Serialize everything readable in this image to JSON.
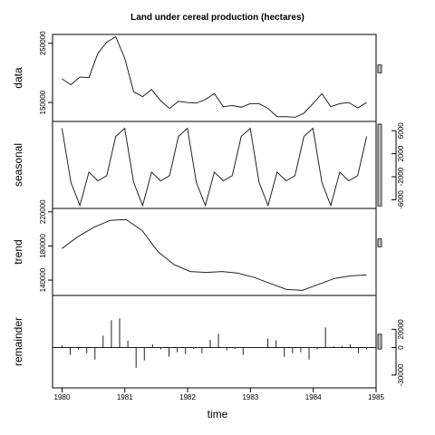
{
  "chart_data": {
    "type": "line",
    "title": "Land under cereal production (hectares)",
    "xlabel": "time",
    "xlim": [
      1979.85,
      1985.0
    ],
    "x_ticks": [
      "1980",
      "1981",
      "1982",
      "1983",
      "1984",
      "1985"
    ],
    "x_tick_values": [
      1980,
      1981,
      1982,
      1983,
      1984,
      1985
    ],
    "x_start": 1980.0,
    "x_step": 0.1667,
    "panels": [
      {
        "name": "data",
        "type": "line",
        "ylim": [
          118000,
          265000
        ],
        "ticks": [
          {
            "value": 150000,
            "label": "150000"
          },
          {
            "value": 250000,
            "label": "250000"
          }
        ],
        "tick_side": "left",
        "values": [
          190000,
          180000,
          193000,
          192000,
          233000,
          252000,
          261000,
          225000,
          168000,
          160000,
          172000,
          153000,
          140000,
          152000,
          150000,
          149000,
          155000,
          165000,
          143000,
          145000,
          142000,
          148000,
          148000,
          140000,
          126000,
          126000,
          125000,
          132000,
          148000,
          165000,
          143000,
          148000,
          150000,
          141000,
          150000
        ]
      },
      {
        "name": "seasonal",
        "type": "line",
        "ylim": [
          -7500,
          7600
        ],
        "ticks": [
          {
            "value": -6000,
            "label": "-6000"
          },
          {
            "value": -2000,
            "label": "-2000"
          },
          {
            "value": 2000,
            "label": "2000"
          },
          {
            "value": 6000,
            "label": "6000"
          }
        ],
        "tick_side": "right",
        "values": [
          6400,
          -3000,
          -7000,
          -1200,
          -2700,
          -1800,
          5000,
          6400,
          -3000,
          -7000,
          -1200,
          -2700,
          -1800,
          5000,
          6400,
          -3000,
          -7000,
          -1200,
          -2700,
          -1800,
          5000,
          6400,
          -3000,
          -7000,
          -1200,
          -2700,
          -1800,
          5000,
          6400,
          -3000,
          -7000,
          -1200,
          -2700,
          -1800,
          5000
        ]
      },
      {
        "name": "trend",
        "type": "line",
        "ylim": [
          122000,
          224000
        ],
        "ticks": [
          {
            "value": 140000,
            "label": "140000"
          },
          {
            "value": 180000,
            "label": "180000"
          },
          {
            "value": 220000,
            "label": "220000"
          }
        ],
        "tick_side": "left",
        "values": [
          177000,
          191000,
          202000,
          210000,
          211000,
          198000,
          173000,
          158000,
          150000,
          149000,
          150000,
          148000,
          143000,
          136000,
          129000,
          128000,
          135000,
          142000,
          145000,
          146000
        ]
      },
      {
        "name": "remainder",
        "type": "bar",
        "ylim": [
          -44000,
          57000
        ],
        "ticks": [
          {
            "value": -30000,
            "label": "-30000"
          },
          {
            "value": 0,
            "label": "0"
          },
          {
            "value": 20000,
            "label": "20000"
          }
        ],
        "tick_side": "right",
        "values": [
          2500,
          -8000,
          -2000,
          -6000,
          -13000,
          13000,
          30000,
          32000,
          7500,
          -22000,
          -14000,
          3500,
          -2000,
          -10000,
          -5000,
          -7000,
          -1500,
          -6000,
          8500,
          15000,
          -3000,
          -1500,
          -8000,
          0,
          0,
          10000,
          8000,
          -10000,
          -6000,
          -5000,
          -13000,
          -2000,
          22000,
          1500,
          2000,
          3500,
          -6000,
          -2000
        ]
      }
    ],
    "x_remainder_start": 1980.0,
    "x_remainder_step": 0.1333
  }
}
